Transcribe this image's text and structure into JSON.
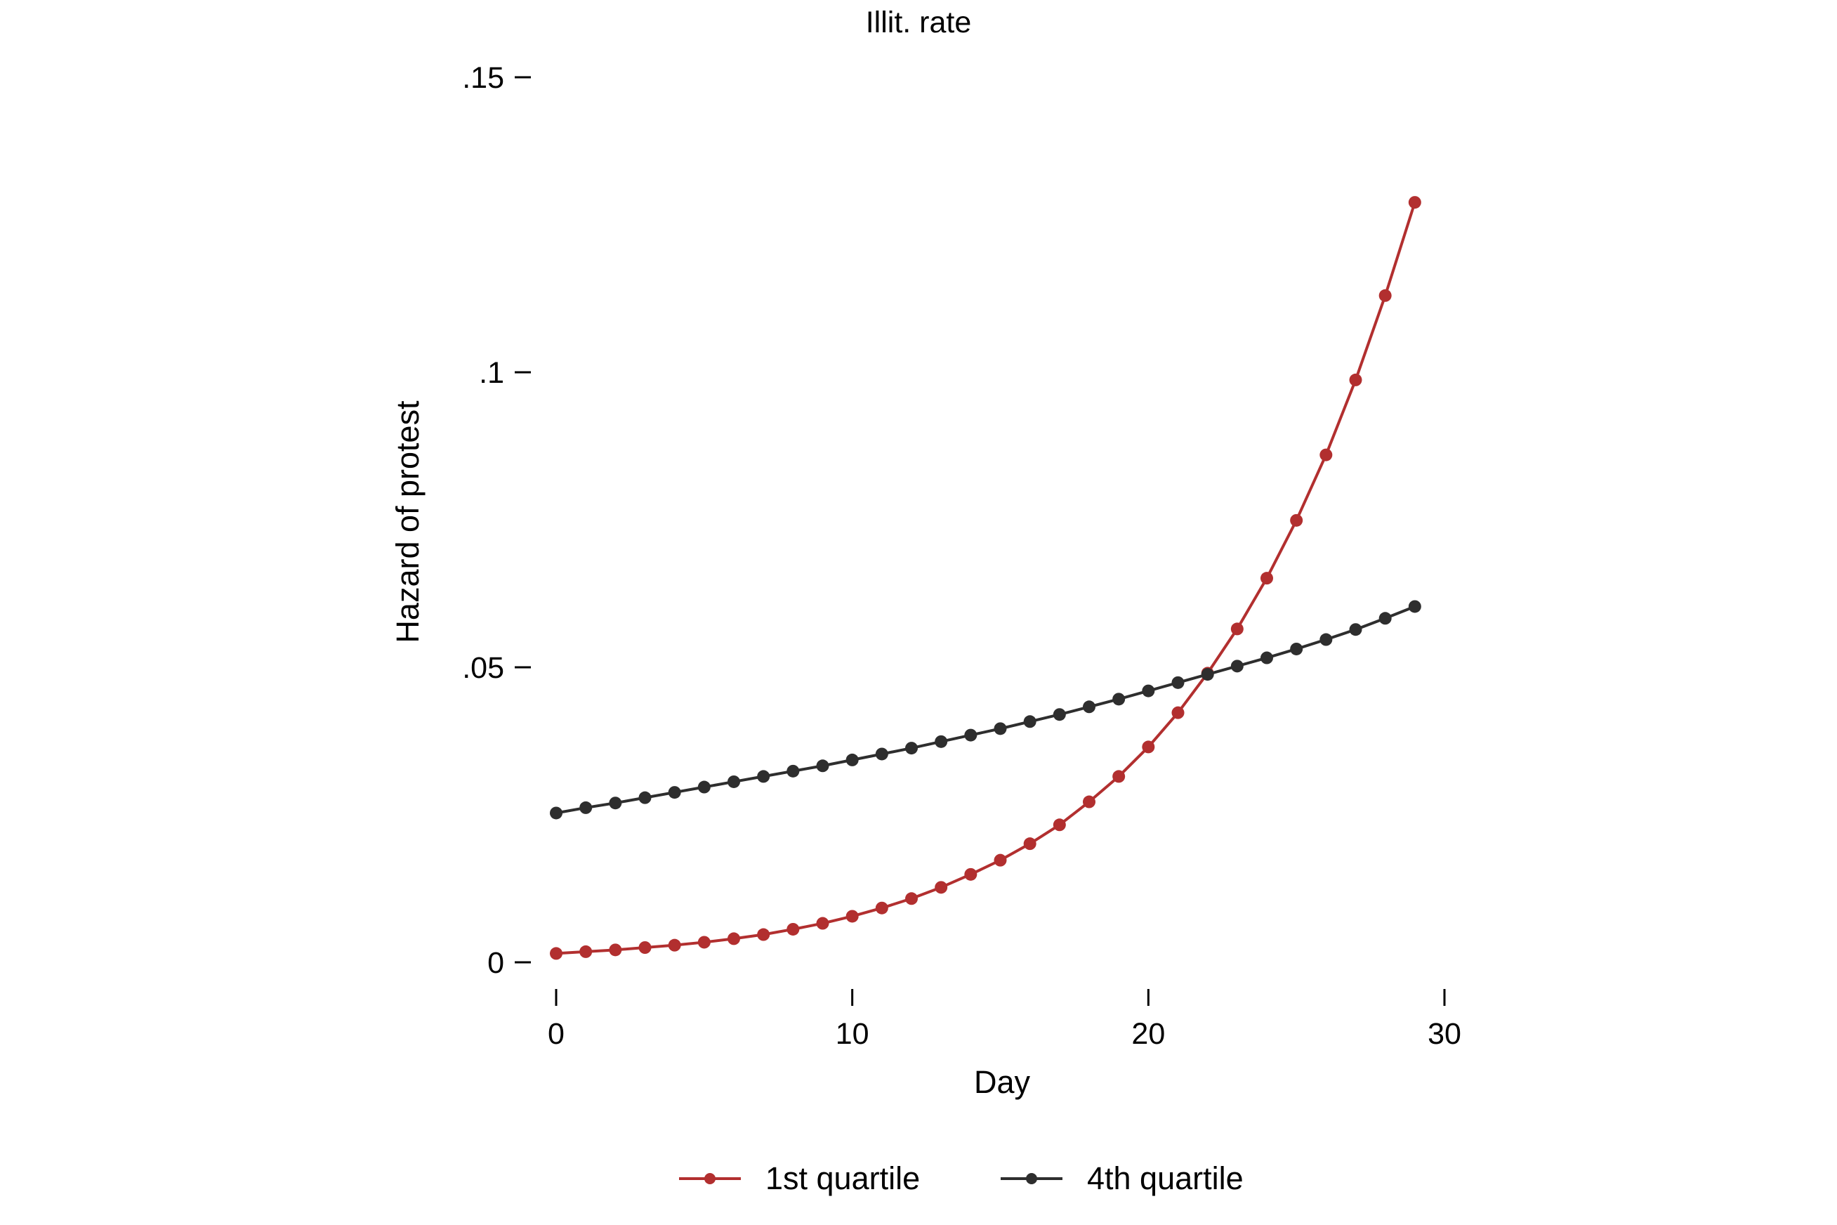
{
  "chart_data": {
    "type": "line",
    "title": "Illit. rate",
    "xlabel": "Day",
    "ylabel": "Hazard of protest",
    "xlim": [
      0,
      30
    ],
    "ylim": [
      0,
      0.15
    ],
    "xticks": [
      0,
      10,
      20,
      30
    ],
    "xtick_labels": [
      "0",
      "10",
      "20",
      "30"
    ],
    "yticks": [
      0,
      0.05,
      0.1,
      0.15
    ],
    "ytick_labels": [
      "0",
      ".05",
      ".1",
      ".15"
    ],
    "grid": false,
    "legend_position": "bottom",
    "x": [
      0,
      1,
      2,
      3,
      4,
      5,
      6,
      7,
      8,
      9,
      10,
      11,
      12,
      13,
      14,
      15,
      16,
      17,
      18,
      19,
      20,
      21,
      22,
      23,
      24,
      25,
      26,
      27,
      28,
      29
    ],
    "series": [
      {
        "name": "1st quartile",
        "color": "#b22f2f",
        "values": [
          0.0015,
          0.0018,
          0.0021,
          0.0025,
          0.0029,
          0.0034,
          0.004,
          0.0047,
          0.0056,
          0.0066,
          0.0078,
          0.0092,
          0.0108,
          0.0127,
          0.0149,
          0.0173,
          0.0201,
          0.0233,
          0.0272,
          0.0315,
          0.0365,
          0.0423,
          0.049,
          0.0565,
          0.0651,
          0.0749,
          0.086,
          0.0987,
          0.113,
          0.1288
        ]
      },
      {
        "name": "4th quartile",
        "color": "#2e2e2e",
        "values": [
          0.0253,
          0.0262,
          0.027,
          0.0279,
          0.0288,
          0.0297,
          0.0306,
          0.0315,
          0.0324,
          0.0333,
          0.0343,
          0.0353,
          0.0363,
          0.0374,
          0.0385,
          0.0396,
          0.0408,
          0.042,
          0.0433,
          0.0446,
          0.046,
          0.0474,
          0.0488,
          0.0502,
          0.0516,
          0.0531,
          0.0547,
          0.0564,
          0.0583,
          0.0603
        ]
      }
    ]
  }
}
